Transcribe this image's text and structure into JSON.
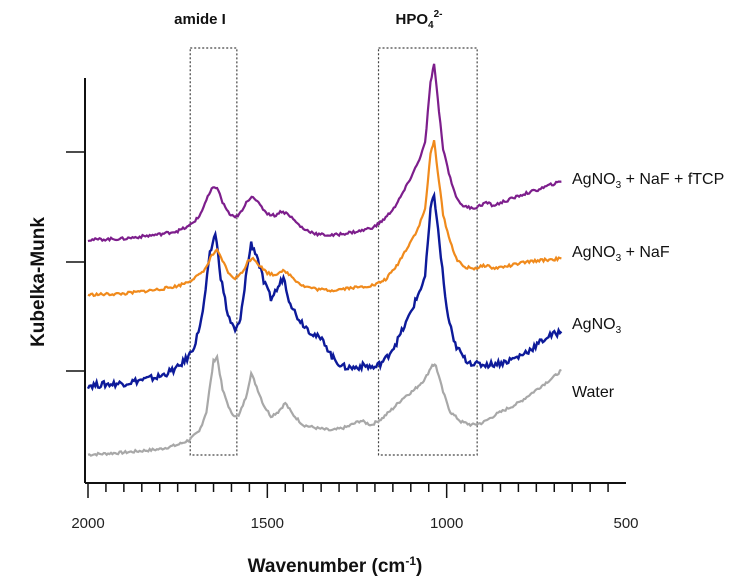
{
  "chart_data": {
    "type": "line",
    "xlabel": "Wavenumber (cm",
    "xlabel_superscript": "-1",
    "xlabel_suffix": ")",
    "ylabel": "Kubelka-Munk",
    "xlim": [
      2000,
      500
    ],
    "x_reversed": true,
    "x_ticks": [
      2000,
      1500,
      1000,
      500
    ],
    "y_ticks_labeled": false,
    "grid": false,
    "legend": "labels at right end of each trace",
    "annotations": [
      {
        "label": "amide I",
        "x_range": [
          1715,
          1585
        ]
      },
      {
        "label_main": "HPO",
        "label_sub": "4",
        "label_sup": "2-",
        "x_range": [
          1190,
          915
        ]
      }
    ],
    "series": [
      {
        "name": "Water",
        "color": "#a8a8a8",
        "points": [
          [
            2000,
            0.03
          ],
          [
            1900,
            0.05
          ],
          [
            1800,
            0.08
          ],
          [
            1750,
            0.12
          ],
          [
            1720,
            0.16
          ],
          [
            1690,
            0.24
          ],
          [
            1670,
            0.42
          ],
          [
            1650,
            0.88
          ],
          [
            1640,
            0.92
          ],
          [
            1625,
            0.62
          ],
          [
            1600,
            0.4
          ],
          [
            1580,
            0.38
          ],
          [
            1560,
            0.55
          ],
          [
            1545,
            0.77
          ],
          [
            1530,
            0.65
          ],
          [
            1510,
            0.48
          ],
          [
            1490,
            0.38
          ],
          [
            1470,
            0.42
          ],
          [
            1450,
            0.5
          ],
          [
            1430,
            0.4
          ],
          [
            1400,
            0.3
          ],
          [
            1360,
            0.27
          ],
          [
            1320,
            0.25
          ],
          [
            1280,
            0.28
          ],
          [
            1240,
            0.34
          ],
          [
            1210,
            0.3
          ],
          [
            1180,
            0.36
          ],
          [
            1150,
            0.45
          ],
          [
            1120,
            0.55
          ],
          [
            1090,
            0.62
          ],
          [
            1060,
            0.72
          ],
          [
            1040,
            0.85
          ],
          [
            1030,
            0.84
          ],
          [
            1010,
            0.6
          ],
          [
            990,
            0.42
          ],
          [
            960,
            0.33
          ],
          [
            930,
            0.3
          ],
          [
            900,
            0.32
          ],
          [
            860,
            0.4
          ],
          [
            800,
            0.5
          ],
          [
            750,
            0.62
          ],
          [
            700,
            0.74
          ],
          [
            680,
            0.8
          ]
        ]
      },
      {
        "name": "AgNO",
        "name_sub": "3",
        "color": "#0d1a9a",
        "points": [
          [
            2000,
            0.06
          ],
          [
            1900,
            0.08
          ],
          [
            1800,
            0.14
          ],
          [
            1750,
            0.22
          ],
          [
            1720,
            0.32
          ],
          [
            1700,
            0.45
          ],
          [
            1680,
            0.72
          ],
          [
            1660,
            1.25
          ],
          [
            1645,
            1.45
          ],
          [
            1630,
            1.05
          ],
          [
            1610,
            0.7
          ],
          [
            1590,
            0.55
          ],
          [
            1575,
            0.65
          ],
          [
            1560,
            1.05
          ],
          [
            1545,
            1.35
          ],
          [
            1530,
            1.25
          ],
          [
            1510,
            1.0
          ],
          [
            1490,
            0.85
          ],
          [
            1470,
            0.95
          ],
          [
            1455,
            1.05
          ],
          [
            1440,
            0.85
          ],
          [
            1420,
            0.7
          ],
          [
            1400,
            0.62
          ],
          [
            1380,
            0.55
          ],
          [
            1360,
            0.5
          ],
          [
            1340,
            0.45
          ],
          [
            1320,
            0.32
          ],
          [
            1290,
            0.23
          ],
          [
            1260,
            0.22
          ],
          [
            1230,
            0.24
          ],
          [
            1200,
            0.22
          ],
          [
            1170,
            0.3
          ],
          [
            1140,
            0.45
          ],
          [
            1110,
            0.65
          ],
          [
            1080,
            0.88
          ],
          [
            1060,
            1.05
          ],
          [
            1045,
            1.65
          ],
          [
            1035,
            1.8
          ],
          [
            1020,
            1.35
          ],
          [
            1000,
            0.75
          ],
          [
            980,
            0.45
          ],
          [
            950,
            0.3
          ],
          [
            920,
            0.25
          ],
          [
            880,
            0.25
          ],
          [
            840,
            0.27
          ],
          [
            800,
            0.32
          ],
          [
            760,
            0.4
          ],
          [
            720,
            0.5
          ],
          [
            680,
            0.55
          ]
        ]
      },
      {
        "name": "AgNO",
        "name_sub": "3",
        "name_suffix": " + NaF",
        "color": "#f08a1c",
        "points": [
          [
            2000,
            0.02
          ],
          [
            1900,
            0.03
          ],
          [
            1800,
            0.07
          ],
          [
            1750,
            0.1
          ],
          [
            1720,
            0.14
          ],
          [
            1690,
            0.2
          ],
          [
            1670,
            0.27
          ],
          [
            1655,
            0.38
          ],
          [
            1640,
            0.42
          ],
          [
            1625,
            0.33
          ],
          [
            1605,
            0.2
          ],
          [
            1590,
            0.17
          ],
          [
            1570,
            0.22
          ],
          [
            1555,
            0.32
          ],
          [
            1540,
            0.36
          ],
          [
            1520,
            0.28
          ],
          [
            1500,
            0.22
          ],
          [
            1480,
            0.2
          ],
          [
            1460,
            0.24
          ],
          [
            1440,
            0.21
          ],
          [
            1420,
            0.15
          ],
          [
            1400,
            0.1
          ],
          [
            1360,
            0.07
          ],
          [
            1320,
            0.06
          ],
          [
            1280,
            0.08
          ],
          [
            1240,
            0.09
          ],
          [
            1200,
            0.11
          ],
          [
            1170,
            0.16
          ],
          [
            1140,
            0.28
          ],
          [
            1110,
            0.45
          ],
          [
            1080,
            0.62
          ],
          [
            1060,
            0.8
          ],
          [
            1045,
            1.3
          ],
          [
            1035,
            1.42
          ],
          [
            1025,
            1.15
          ],
          [
            1010,
            0.75
          ],
          [
            990,
            0.5
          ],
          [
            970,
            0.33
          ],
          [
            950,
            0.27
          ],
          [
            920,
            0.26
          ],
          [
            890,
            0.29
          ],
          [
            870,
            0.26
          ],
          [
            830,
            0.28
          ],
          [
            790,
            0.31
          ],
          [
            750,
            0.33
          ],
          [
            710,
            0.34
          ],
          [
            680,
            0.35
          ]
        ]
      },
      {
        "name": "AgNO",
        "name_sub": "3",
        "name_suffix": " + NaF + fTCP",
        "color": "#7d1e8c",
        "points": [
          [
            2000,
            0.02
          ],
          [
            1900,
            0.03
          ],
          [
            1800,
            0.07
          ],
          [
            1750,
            0.1
          ],
          [
            1720,
            0.14
          ],
          [
            1690,
            0.23
          ],
          [
            1670,
            0.38
          ],
          [
            1655,
            0.48
          ],
          [
            1640,
            0.5
          ],
          [
            1625,
            0.36
          ],
          [
            1605,
            0.25
          ],
          [
            1590,
            0.22
          ],
          [
            1570,
            0.28
          ],
          [
            1555,
            0.38
          ],
          [
            1540,
            0.42
          ],
          [
            1520,
            0.33
          ],
          [
            1500,
            0.26
          ],
          [
            1480,
            0.24
          ],
          [
            1460,
            0.28
          ],
          [
            1440,
            0.25
          ],
          [
            1420,
            0.18
          ],
          [
            1400,
            0.12
          ],
          [
            1360,
            0.07
          ],
          [
            1320,
            0.06
          ],
          [
            1280,
            0.08
          ],
          [
            1240,
            0.1
          ],
          [
            1200,
            0.14
          ],
          [
            1170,
            0.22
          ],
          [
            1140,
            0.34
          ],
          [
            1110,
            0.52
          ],
          [
            1080,
            0.72
          ],
          [
            1060,
            0.9
          ],
          [
            1045,
            1.45
          ],
          [
            1035,
            1.62
          ],
          [
            1025,
            1.3
          ],
          [
            1010,
            0.85
          ],
          [
            990,
            0.58
          ],
          [
            970,
            0.38
          ],
          [
            950,
            0.32
          ],
          [
            920,
            0.31
          ],
          [
            890,
            0.36
          ],
          [
            870,
            0.33
          ],
          [
            830,
            0.38
          ],
          [
            790,
            0.43
          ],
          [
            750,
            0.47
          ],
          [
            710,
            0.52
          ],
          [
            680,
            0.55
          ]
        ]
      }
    ]
  }
}
